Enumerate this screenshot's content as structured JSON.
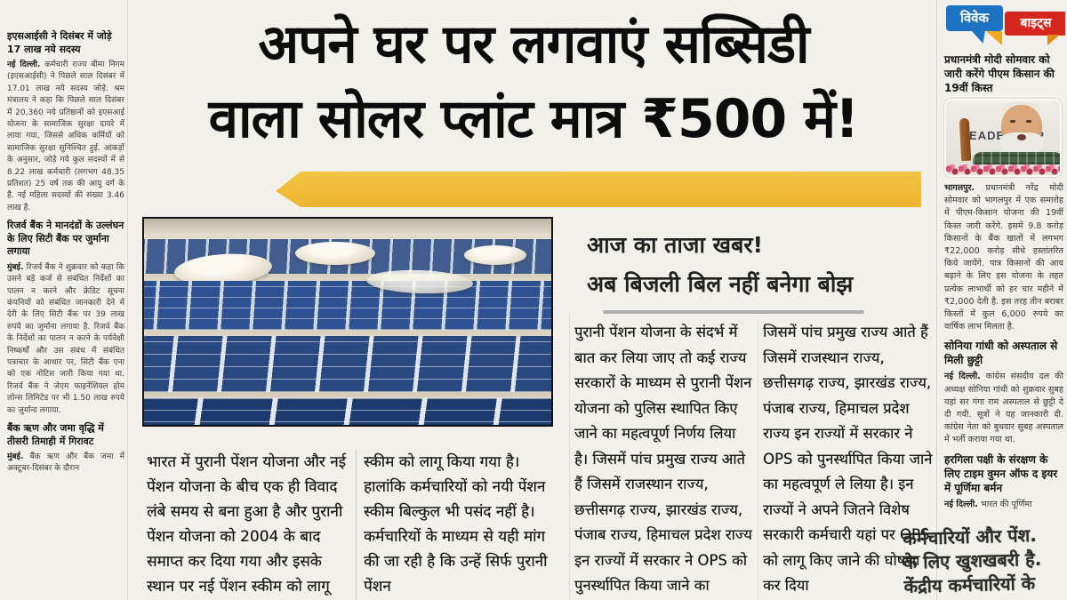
{
  "colors": {
    "accent_yellow": "#EDB52F",
    "masthead_blue": "#1D72C4",
    "masthead_red": "#D4261C",
    "tail_yellow": "#F0A81C"
  },
  "main": {
    "headline_line1": "अपने घर पर लगवाएं सब्सिडी",
    "headline_line2": "वाला सोलर प्लांट मात्र ₹500 में!",
    "subhead_line1": "आज का ताजा खबर!",
    "subhead_line2": "अब बिजली बिल नहीं बनेगा बोझ",
    "photo": {
      "subject": "rooftop-solar-panel-array"
    },
    "columns": [
      {
        "text": "भारत में पुरानी पेंशन योजना और नई पेंशन योजना के बीच एक ही विवाद लंबे समय से बना हुआ है और पुरानी पेंशन योजना को 2004 के बाद समाप्त कर दिया गया और इसके स्थान पर नई पेंशन स्कीम को लागू किया गया"
      },
      {
        "text": "स्कीम को लागू किया गया है। हालांकि कर्मचारियों को नयी पेंशन स्कीम बिल्कुल भी पसंद नहीं है। कर्मचारियों के माध्यम से यही मांग की जा रही है कि उन्हें सिर्फ पुरानी पेंशन"
      },
      {
        "text": "पुरानी पेंशन योजना के संदर्भ में बात कर लिया जाए तो कई राज्य सरकारों के माध्यम से पुरानी पेंशन योजना को पुलिस स्थापित किए जाने का महत्वपूर्ण निर्णय लिया है। जिसमें पांच प्रमुख राज्य आते हैं जिसमें राजस्थान राज्य, छत्तीसगढ़ राज्य, झारखंड राज्य, पंजाब राज्य, हिमाचल प्रदेश राज्य इन राज्यों में सरकार ने OPS को पुनर्स्थापित किया जाने का"
      },
      {
        "text": "जिसमें पांच प्रमुख राज्य आते हैं जिसमें राजस्थान राज्य, छत्तीसगढ़ राज्य, झारखंड राज्य, पंजाब राज्य, हिमाचल प्रदेश राज्य इन राज्यों में सरकार ने OPS को पुनर्स्थापित किया जाने का महत्वपूर्ण ले लिया है। इन राज्यों ने अपने जितने विशेष सरकारी कर्मचारी यहां पर OPS को लागू किए जाने की घोषणा कर दिया"
      }
    ]
  },
  "left_column": {
    "articles": [
      {
        "heading": "इएसआईसी ने दिसंबर में जोड़े 17 लाख नये सदस्य",
        "dateline": "नई दिल्ली.",
        "body": "कर्मचारी राज्य बीमा निगम (इएसआईसी) ने पिछले साल दिसंबर में 17.01 लाख नये सदस्य जोड़े. श्रम मंत्रालय ने कहा कि पिछले साल दिसंबर में 20,360 नये प्रतिष्ठानों को इएसआई योजना के सामाजिक सुरक्षा दायरे में लाया गया, जिससे अधिक कर्मियों को सामाजिक सुरक्षा सुनिश्चित हुई. आंकड़ों के अनुसार, जोड़े गये कुल सदस्यों में से 8.22 लाख कर्मचारी (लगभग 48.35 प्रतिशत) 25 वर्ष तक की आयु वर्ग के हैं. नई महिला सदस्यों की संख्या 3.46 लाख है."
      },
      {
        "heading": "रिजर्व बैंक ने मानदंडों के उल्लंघन के लिए सिटी बैंक पर जुर्माना लगाया",
        "dateline": "मुंबई.",
        "body": "रिजर्व बैंक ने शुक्रवार को कहा कि उसने बड़े कर्ज से संबंधित निर्देशों का पालन न करने और क्रेडिट सूचना कंपनियों को संबंधित जानकारी देने में देरी के लिए सिटी बैंक पर 39 लाख रुपये का जुर्माना लगाया है. रिजर्व बैंक के निर्देशों का पालन न करने के पर्यवेक्षी निष्कर्षों और उस संबंध में संबंधित पत्राचार के आधार पर, सिटी बैंक एना को एक नोटिस जारी किया गया था. रिजर्व बैंक ने जेएम फाइनेंशियल होम लोन्स लिमिटेड पर भी 1.50 लाख रुपये का जुर्माना लगाया."
      },
      {
        "heading": "बैंक ऋण और जमा वृद्धि में तीसरी तिमाही में गिरावट",
        "dateline": "मुंबई.",
        "body": "बैंक ऋण और बैंक जमा में अक्टूबर-दिसंबर के दौरान"
      }
    ]
  },
  "sidebar": {
    "masthead": {
      "word1": "विवेक",
      "word2": "बाइट्स"
    },
    "photo_text": "LEADERSHIP",
    "articles": [
      {
        "heading": "प्रधानमंत्री मोदी सोमवार को जारी करेंगे पीएम किसान की 19वीं किस्त",
        "dateline": "भागलपुर.",
        "body": "प्रधानमंत्री नरेंद्र मोदी सोमवार को भागलपुर में एक समारोह में पीएम-किसान योजना की 19वीं किस्त जारी करेंगे. इसमें 9.8 करोड़ किसानों के बैंक खातों में लगभग ₹22,000 करोड़ सीधे हस्तांतरित किये जायेंगे. पात्र किसानों की आय बढ़ाने के लिए इस योजना के तहत प्रत्येक लाभार्थी को हर चार महीने में ₹2,000 देती है. इस तरह तीन बराबर किस्तों में कुल 6,000 रुपये का वार्षिक लाभ मिलता है."
      },
      {
        "heading": "सोनिया गांधी को अस्पताल से मिली छुट्टी",
        "dateline": "नई दिल्ली.",
        "body": "कांग्रेस संसदीय दल की अध्यक्ष सोनिया गांधी को शुक्रवार सुबह यहां सर गंगा राम अस्पताल से छुट्टी दे दी गयी. सूत्रों ने यह जानकारी दी. कांग्रेस नेता को बुधवार सुबह अस्पताल में भर्ती कराया गया था."
      },
      {
        "heading": "हरगिला पक्षी के संरक्षण के लिए टाइम वुमन ऑफ द इयर में पूर्णिमा बर्मन",
        "dateline": "नई दिल्ली.",
        "body": "भारत की पूर्णिमा"
      }
    ]
  },
  "overlay": {
    "line1": "कर्मचारियों और पेंश.",
    "line2": "के लिए खुशखबरी है.",
    "line3": "केंद्रीय कर्मचारियों के"
  }
}
